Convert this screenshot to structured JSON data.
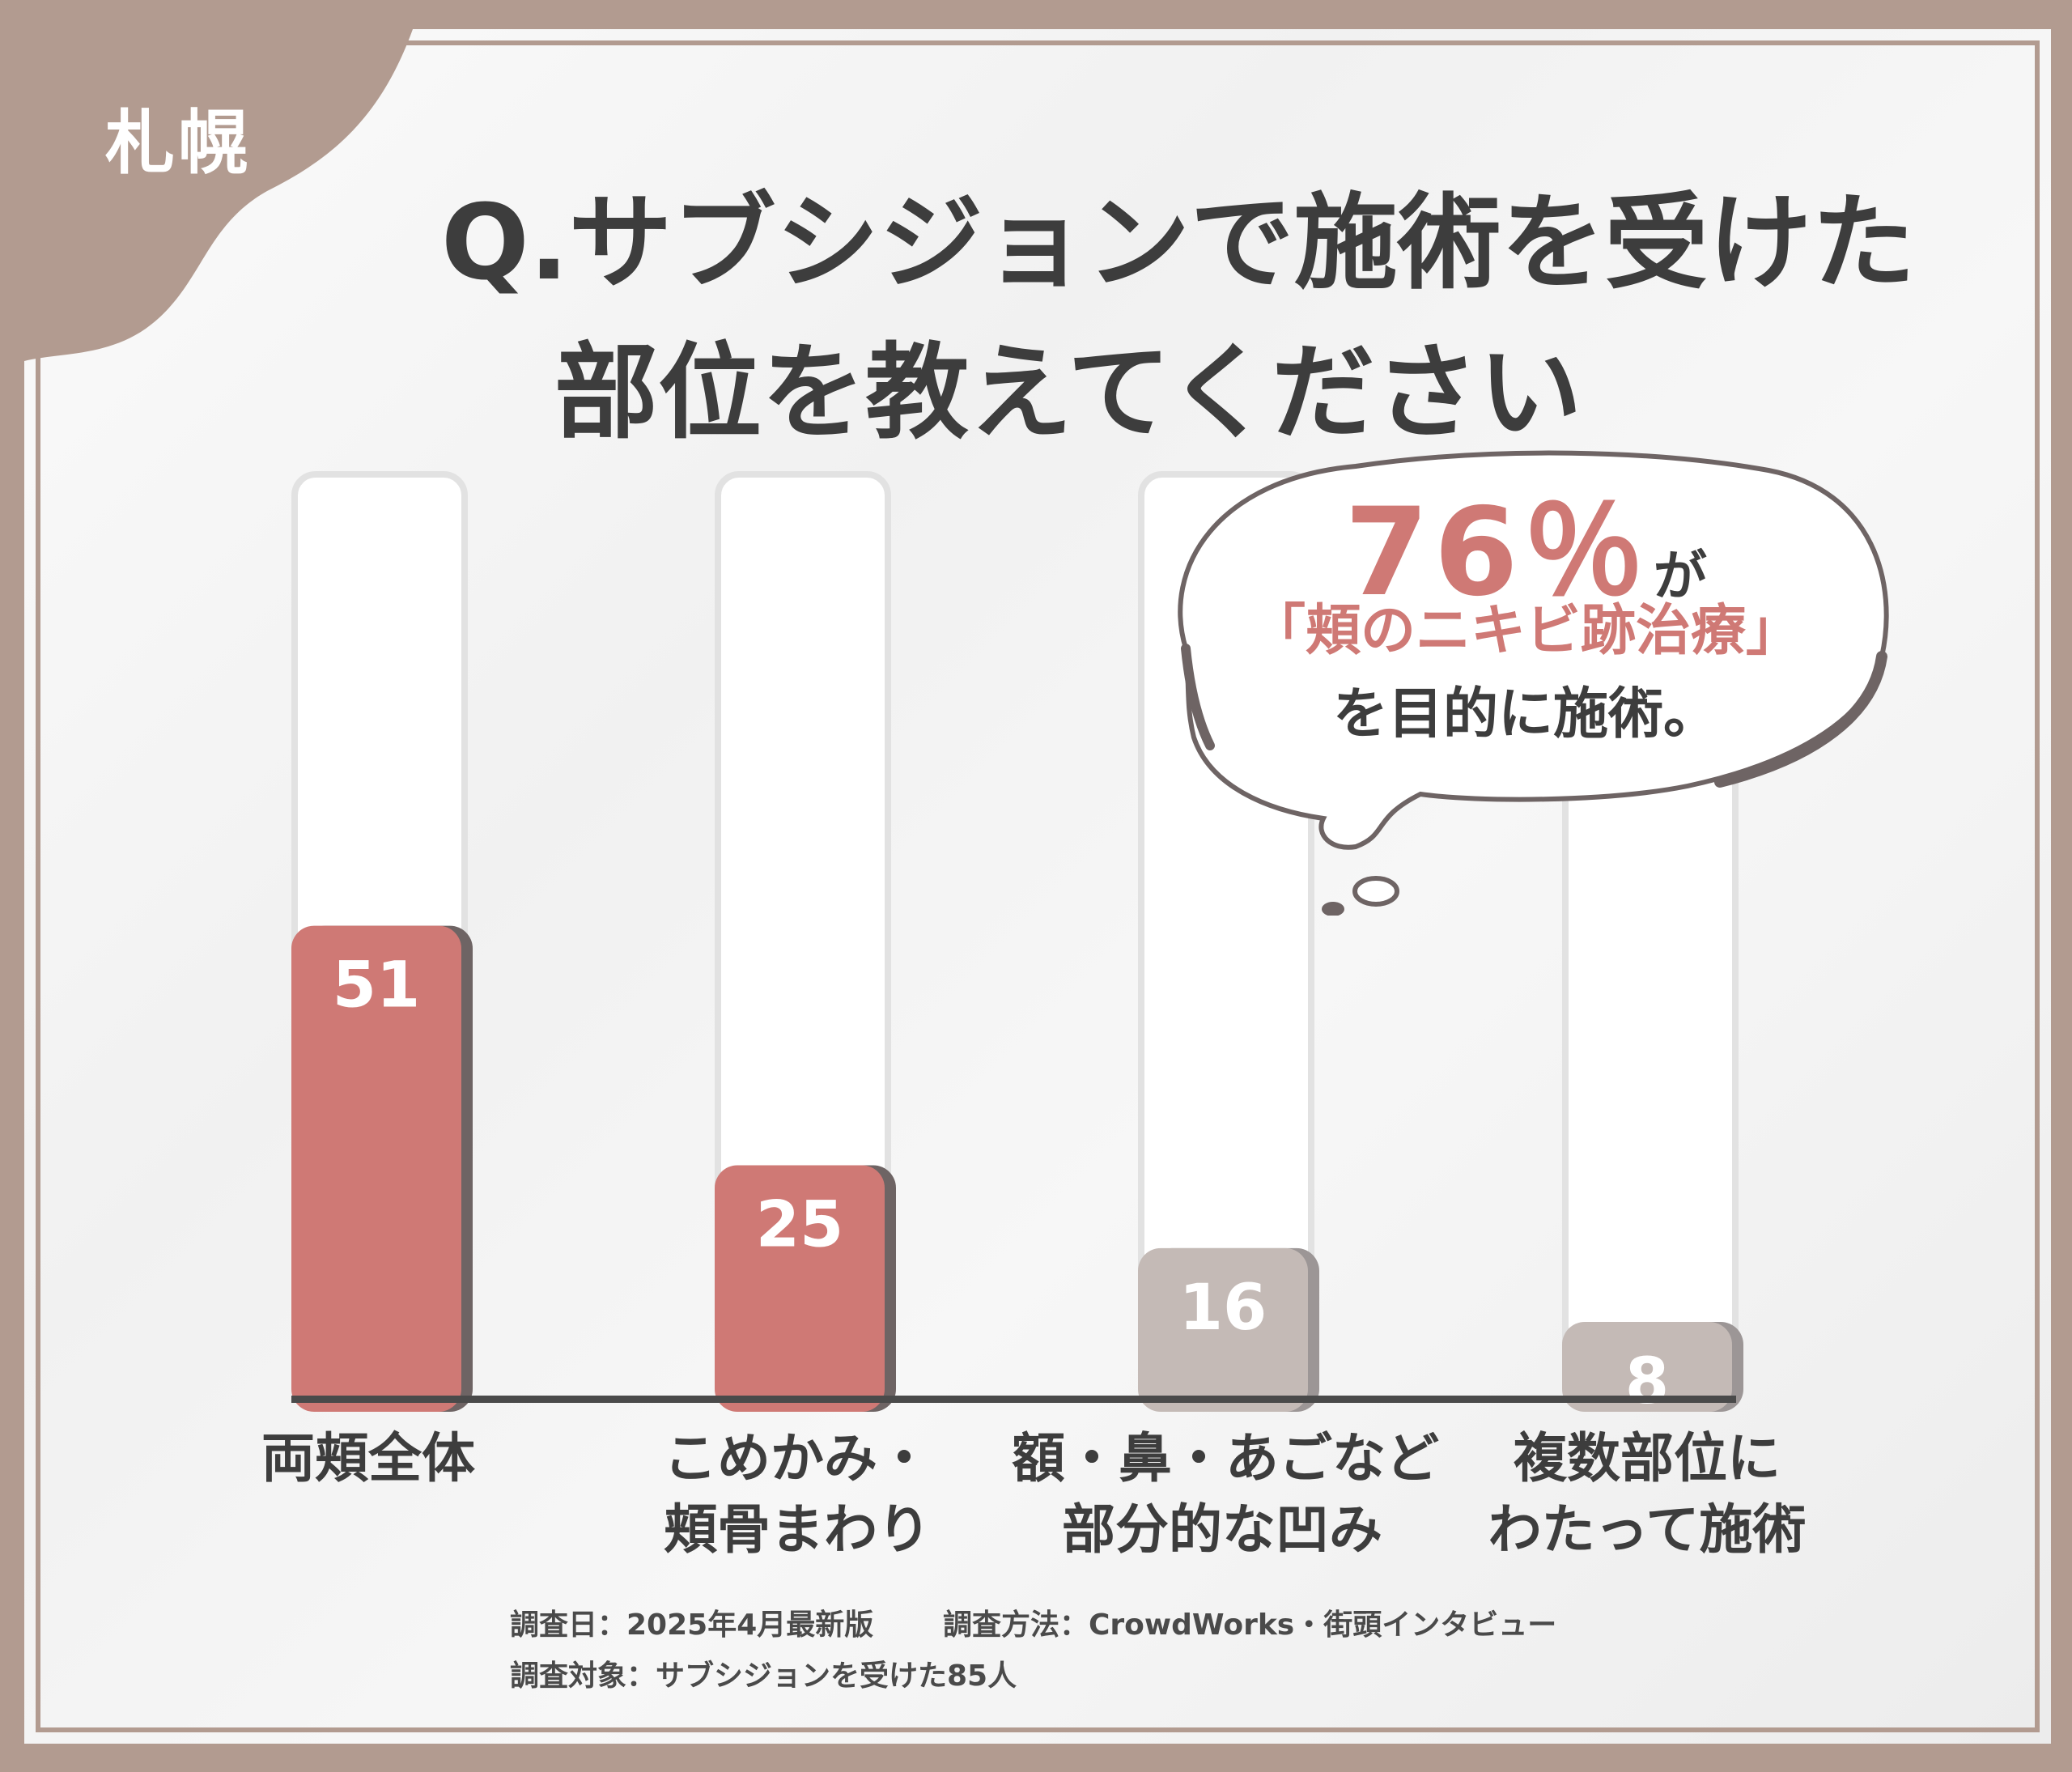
{
  "region_label": "札幌",
  "title": {
    "line1": "Q.サブシジョンで施術を受けた",
    "line2": "部位を教えてください"
  },
  "callout": {
    "percent": "76％",
    "suffix": "が",
    "highlight": "「頬のニキビ跡治療」",
    "closing": "を目的に施術。"
  },
  "chart_data": {
    "type": "bar",
    "title": "Q.サブシジョンで施術を受けた部位を教えてください",
    "categories": [
      [
        "両頬全体"
      ],
      [
        "こめかみ・",
        "頬骨まわり"
      ],
      [
        "額・鼻・あごなど",
        "部分的な凹み"
      ],
      [
        "複数部位に",
        "わたって施術"
      ]
    ],
    "values": [
      51,
      25,
      16,
      8
    ],
    "ylim": [
      0,
      100
    ],
    "grid": false,
    "legend": "none",
    "colors": {
      "highlight_bar": "#cf7975",
      "highlight_bar_shadow": "#6e6464",
      "muted_bar": "#c4bab6",
      "muted_bar_shadow": "#9c9696",
      "axis": "#4a4a4a"
    },
    "highlighted": [
      true,
      true,
      false,
      false
    ]
  },
  "footer": {
    "survey_date": "調査日：2025年4月最新版",
    "survey_method": "調査方法：CrowdWorks・街頭インタビュー",
    "survey_target": "調査対象：サブシジョンを受けた85人"
  }
}
